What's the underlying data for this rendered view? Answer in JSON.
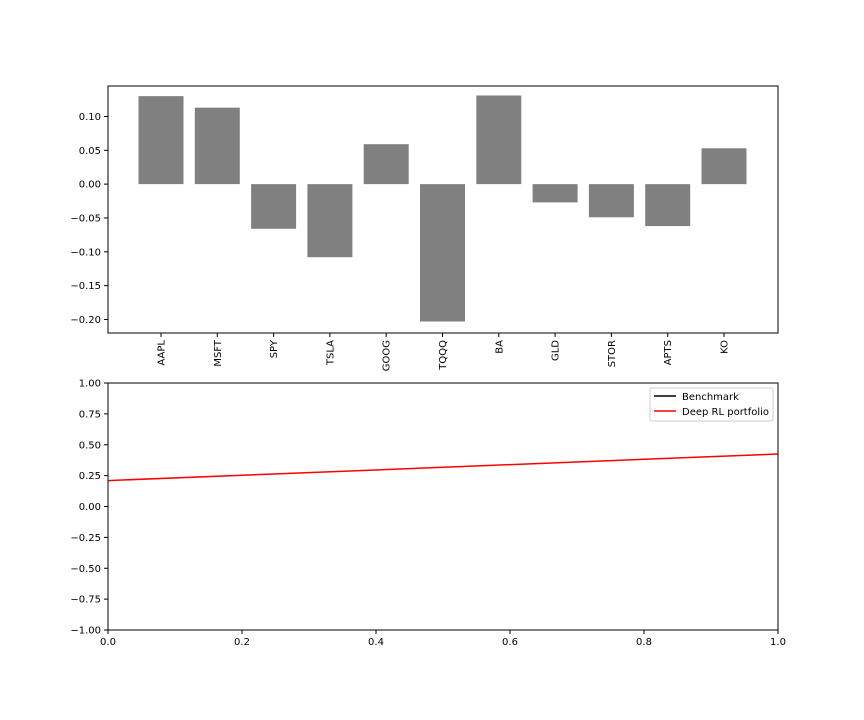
{
  "chart_data": [
    {
      "type": "bar",
      "categories": [
        "AAPL",
        "MSFT",
        "SPY",
        "TSLA",
        "GOOG",
        "TQQQ",
        "BA",
        "GLD",
        "STOR",
        "APTS",
        "KO"
      ],
      "values": [
        0.13,
        0.113,
        -0.066,
        -0.108,
        0.059,
        -0.203,
        0.131,
        -0.027,
        -0.049,
        -0.062,
        0.053
      ],
      "ylim": [
        -0.22,
        0.145
      ],
      "yticks": [
        0.1,
        0.05,
        0.0,
        -0.05,
        -0.1,
        -0.15,
        -0.2
      ],
      "ytick_labels": [
        "0.10",
        "0.05",
        "0.00",
        "−0.05",
        "−0.10",
        "−0.15",
        "−0.20"
      ],
      "bar_color": "#808080",
      "grid": false,
      "title": "",
      "xlabel": "",
      "ylabel": ""
    },
    {
      "type": "line",
      "xlim": [
        0.0,
        1.0
      ],
      "ylim": [
        -1.0,
        1.0
      ],
      "xticks": [
        0.0,
        0.2,
        0.4,
        0.6,
        0.8,
        1.0
      ],
      "xtick_labels": [
        "0.0",
        "0.2",
        "0.4",
        "0.6",
        "0.8",
        "1.0"
      ],
      "yticks": [
        1.0,
        0.75,
        0.5,
        0.25,
        0.0,
        -0.25,
        -0.5,
        -0.75,
        -1.0
      ],
      "ytick_labels": [
        "1.00",
        "0.75",
        "0.50",
        "0.25",
        "0.00",
        "−0.25",
        "−0.50",
        "−0.75",
        "−1.00"
      ],
      "series": [
        {
          "name": "Benchmark",
          "color": "#000000",
          "x": [],
          "y": []
        },
        {
          "name": "Deep RL portfolio",
          "color": "#ff0000",
          "x": [
            0.0,
            1.0
          ],
          "y": [
            0.21,
            0.425
          ]
        }
      ],
      "legend": "top-right",
      "grid": false,
      "title": "",
      "xlabel": "",
      "ylabel": ""
    }
  ]
}
